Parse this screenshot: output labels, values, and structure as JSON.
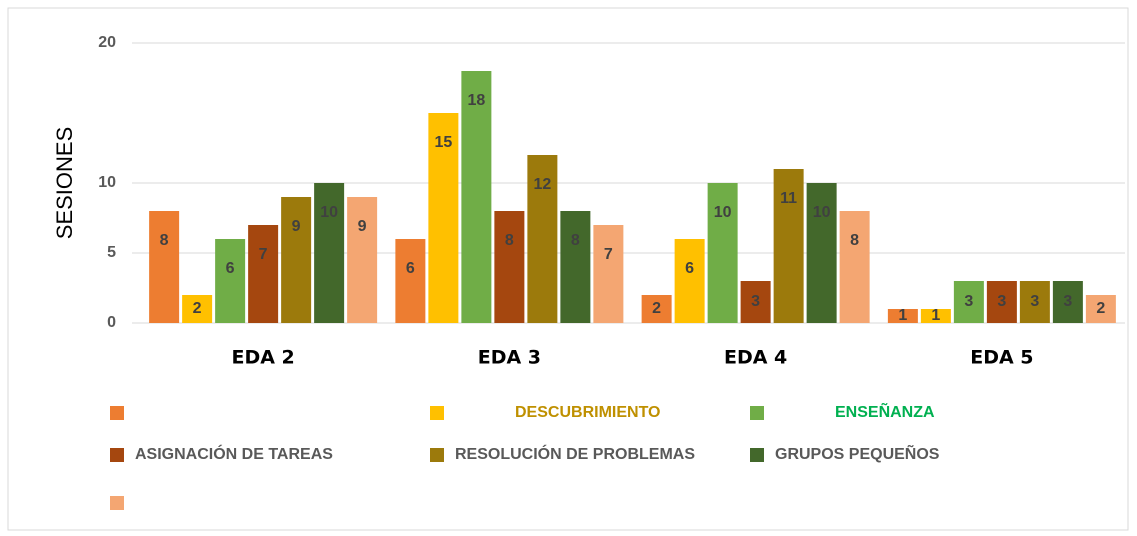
{
  "chart_data": {
    "type": "bar",
    "y_label": "SESIONES",
    "categories": [
      "EDA 2",
      "EDA 3",
      "EDA 4",
      "EDA 5"
    ],
    "series": [
      {
        "name": null,
        "color": "#ED7D31",
        "values": [
          8,
          6,
          2,
          1
        ]
      },
      {
        "name": "DESCUBRIMIENTO",
        "color": "#FFC000",
        "label_color": "#BF9000",
        "values": [
          2,
          15,
          6,
          1
        ]
      },
      {
        "name": "ENSEÑANZA",
        "color": "#70AD47",
        "label_color": "#00B050",
        "values": [
          6,
          18,
          10,
          3
        ]
      },
      {
        "name": "ASIGNACIÓN DE TAREAS",
        "color": "#A5470F",
        "label_color": "#595959",
        "values": [
          7,
          8,
          3,
          3
        ]
      },
      {
        "name": "RESOLUCIÓN DE PROBLEMAS",
        "color": "#9C7A0C",
        "label_color": "#595959",
        "values": [
          9,
          12,
          11,
          3
        ]
      },
      {
        "name": "GRUPOS PEQUEÑOS",
        "color": "#43682B",
        "label_color": "#595959",
        "values": [
          10,
          8,
          10,
          3
        ]
      },
      {
        "name": null,
        "color": "#F4A672",
        "values": [
          9,
          7,
          8,
          2
        ]
      }
    ],
    "ylim": [
      0,
      20
    ],
    "yticks": [
      0,
      5,
      10,
      20
    ],
    "grid": true
  }
}
